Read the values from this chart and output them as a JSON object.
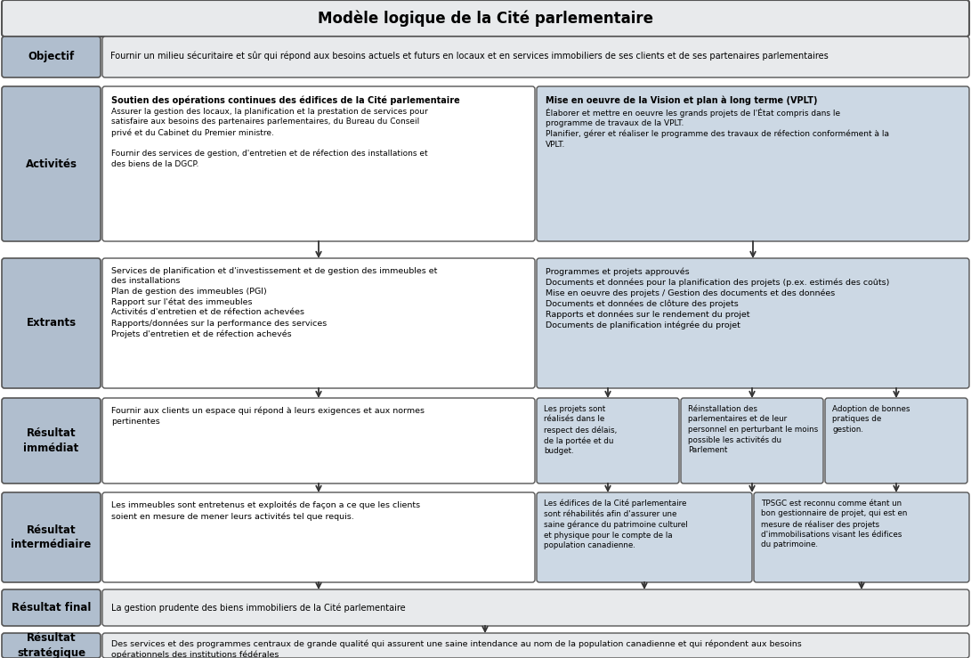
{
  "title": "Modèle logique de la Cité parlementaire",
  "bg_color": "#ffffff",
  "label_bg": "#b0bece",
  "box_bg_white": "#ffffff",
  "box_bg_blue": "#ccd8e4",
  "box_bg_gray": "#e8eaec",
  "box_border": "#555555",
  "title_fontsize": 12,
  "label_fontsize": 8.5,
  "content_fontsize": 6.8,
  "small_fontsize": 6.3,
  "objectif_text": "Fournir un milieu sécuritaire et sûr qui répond aux besoins actuels et futurs en locaux et en services immobiliers de ses clients et de ses partenaires parlementaires",
  "activites_left_title": "Soutien des opérations continues des édifices de la Cité parlementaire",
  "activites_left_body": "Assurer la gestion des locaux, la planification et la prestation de services pour\nsatisfaire aux besoins des partenaires parlementaires, du Bureau du Conseil\nprivé et du Cabinet du Premier ministre.\n\nFournir des services de gestion, d'entretien et de réfection des installations et\ndes biens de la DGCP.",
  "activites_right_title": "Mise en oeuvre de la Vision et plan à long terme (VPLT)",
  "activites_right_body": "Élaborer et mettre en oeuvre les grands projets de l'État compris dans le\nprogramme de travaux de la VPLT.\nPlanifier, gérer et réaliser le programme des travaux de réfection conformément à la\nVPLT.",
  "extrants_left_text": "Services de planification et d'investissement et de gestion des immeubles et\ndes installations\nPlan de gestion des immeubles (PGI)\nRapport sur l'état des immeubles\nActivités d'entretien et de réfection achevées\nRapports/données sur la performance des services\nProjets d'entretien et de réfection achevés",
  "extrants_right_text": "Programmes et projets approuvés\nDocuments et données pour la planification des projets (p.ex. estimés des coûts)\nMise en oeuvre des projets / Gestion des documents et des données\nDocuments et données de clôture des projets\nRapports et données sur le rendement du projet\nDocuments de planification intégrée du projet",
  "res_imm_left_text": "Fournir aux clients un espace qui répond à leurs exigences et aux normes\npertinentes",
  "res_imm_right1_text": "Les projets sont\nréalisés dans le\nrespect des délais,\nde la portée et du\nbudget.",
  "res_imm_right2_text": "Réinstallation des\nparlementaires et de leur\npersonnel en perturbant le moins\npossible les activités du\nParlement",
  "res_imm_right3_text": "Adoption de bonnes\npratiques de\ngestion.",
  "res_inter_left_text": "Les immeubles sont entretenus et exploités de façon a ce que les clients\nsoient en mesure de mener leurs activités tel que requis.",
  "res_inter_right1_text": "Les édifices de la Cité parlementaire\nsont réhabilités afin d'assurer une\nsaine gérance du patrimoine culturel\net physique pour le compte de la\npopulation canadienne.",
  "res_inter_right2_text": "TPSGC est reconnu comme étant un\nbon gestionnaire de projet, qui est en\nmesure de réaliser des projets\nd'immobilisations visant les édifices\ndu patrimoine.",
  "res_final_text": "La gestion prudente des biens immobiliers de la Cité parlementaire",
  "res_strat_text": "Des services et des programmes centraux de grande qualité qui assurent une saine intendance au nom de la population canadienne et qui répondent aux besoins\nopérationnels des institutions fédérales"
}
